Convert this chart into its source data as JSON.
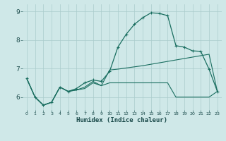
{
  "xlabel": "Humidex (Indice chaleur)",
  "bg_color": "#cfe8e8",
  "grid_color": "#aacccc",
  "line_color": "#1a6e60",
  "xlim": [
    -0.5,
    23.5
  ],
  "ylim": [
    5.55,
    9.25
  ],
  "yticks": [
    6,
    7,
    8,
    9
  ],
  "xticks": [
    0,
    1,
    2,
    3,
    4,
    5,
    6,
    7,
    8,
    9,
    10,
    11,
    12,
    13,
    14,
    15,
    16,
    17,
    18,
    19,
    20,
    21,
    22,
    23
  ],
  "series1_x": [
    0,
    1,
    2,
    3,
    4,
    5,
    6,
    7,
    8,
    9,
    10,
    11,
    12,
    13,
    14,
    15,
    16,
    17,
    18,
    19,
    20,
    21,
    22,
    23
  ],
  "series1_y": [
    6.65,
    6.0,
    5.72,
    5.82,
    6.35,
    6.2,
    6.25,
    6.3,
    6.5,
    6.4,
    6.5,
    6.5,
    6.5,
    6.5,
    6.5,
    6.5,
    6.5,
    6.5,
    6.0,
    6.0,
    6.0,
    6.0,
    6.0,
    6.2
  ],
  "series2_x": [
    0,
    1,
    2,
    3,
    4,
    5,
    6,
    7,
    8,
    9,
    10,
    11,
    12,
    13,
    14,
    15,
    16,
    17,
    18,
    19,
    20,
    21,
    22,
    23
  ],
  "series2_y": [
    6.65,
    6.0,
    5.72,
    5.82,
    6.35,
    6.2,
    6.25,
    6.35,
    6.55,
    6.4,
    6.95,
    6.98,
    7.02,
    7.06,
    7.1,
    7.15,
    7.2,
    7.25,
    7.3,
    7.35,
    7.4,
    7.45,
    7.5,
    6.2
  ],
  "series3_x": [
    0,
    1,
    2,
    3,
    4,
    5,
    6,
    7,
    8,
    9,
    10,
    11,
    12,
    13,
    14,
    15,
    16,
    17,
    18,
    19,
    20,
    21,
    22,
    23
  ],
  "series3_y": [
    6.65,
    6.0,
    5.72,
    5.82,
    6.35,
    6.2,
    6.3,
    6.5,
    6.6,
    6.55,
    6.9,
    7.75,
    8.2,
    8.55,
    8.78,
    8.95,
    8.93,
    8.85,
    7.8,
    7.75,
    7.62,
    7.6,
    6.98,
    6.2
  ]
}
